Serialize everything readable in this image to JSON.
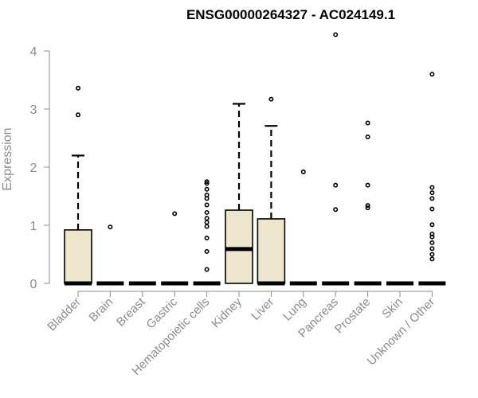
{
  "chart_data": {
    "type": "boxplot",
    "title": "ENSG00000264327 - AC024149.1",
    "xlabel": "",
    "ylabel": "Expression",
    "ylim": [
      0,
      4.3
    ],
    "yticks": [
      0,
      1,
      2,
      3,
      4
    ],
    "grid": false,
    "colors": {
      "box_fill": "#ede5cc",
      "box_stroke": "#000000",
      "axis": "#8c8c8c",
      "label": "#8c8c8c"
    },
    "categories": [
      "Bladder",
      "Brain",
      "Breast",
      "Gastric",
      "Hematopoietic cells",
      "Kidney",
      "Liver",
      "Lung",
      "Pancreas",
      "Prostate",
      "Skin",
      "Unknown / Other"
    ],
    "boxes": [
      {
        "category": "Bladder",
        "q1": 0,
        "median": 0,
        "q3": 0.92,
        "whisker_low": 0,
        "whisker_high": 2.2,
        "outliers": [
          2.9,
          3.36
        ]
      },
      {
        "category": "Brain",
        "q1": 0,
        "median": 0,
        "q3": 0,
        "whisker_low": 0,
        "whisker_high": 0,
        "outliers": [
          0.97
        ]
      },
      {
        "category": "Breast",
        "q1": 0,
        "median": 0,
        "q3": 0,
        "whisker_low": 0,
        "whisker_high": 0,
        "outliers": []
      },
      {
        "category": "Gastric",
        "q1": 0,
        "median": 0,
        "q3": 0,
        "whisker_low": 0,
        "whisker_high": 0,
        "outliers": [
          1.2
        ]
      },
      {
        "category": "Hematopoietic cells",
        "q1": 0,
        "median": 0,
        "q3": 0,
        "whisker_low": 0,
        "whisker_high": 0,
        "outliers": [
          0.24,
          0.55,
          0.78,
          0.98,
          1.05,
          1.12,
          1.22,
          1.35,
          1.46,
          1.52,
          1.62,
          1.72,
          1.75
        ]
      },
      {
        "category": "Kidney",
        "q1": 0,
        "median": 0.59,
        "q3": 1.26,
        "whisker_low": 0,
        "whisker_high": 3.09,
        "outliers": []
      },
      {
        "category": "Liver",
        "q1": 0,
        "median": 0,
        "q3": 1.11,
        "whisker_low": 0,
        "whisker_high": 2.71,
        "outliers": [
          3.17
        ]
      },
      {
        "category": "Lung",
        "q1": 0,
        "median": 0,
        "q3": 0,
        "whisker_low": 0,
        "whisker_high": 0,
        "outliers": [
          1.92
        ]
      },
      {
        "category": "Pancreas",
        "q1": 0,
        "median": 0,
        "q3": 0,
        "whisker_low": 0,
        "whisker_high": 0,
        "outliers": [
          1.27,
          1.69,
          4.28
        ]
      },
      {
        "category": "Prostate",
        "q1": 0,
        "median": 0,
        "q3": 0,
        "whisker_low": 0,
        "whisker_high": 0,
        "outliers": [
          1.3,
          1.34,
          1.69,
          2.52,
          2.76
        ]
      },
      {
        "category": "Skin",
        "q1": 0,
        "median": 0,
        "q3": 0,
        "whisker_low": 0,
        "whisker_high": 0,
        "outliers": []
      },
      {
        "category": "Unknown / Other",
        "q1": 0,
        "median": 0,
        "q3": 0,
        "whisker_low": 0,
        "whisker_high": 0,
        "outliers": [
          0.42,
          0.5,
          0.6,
          0.7,
          0.8,
          0.85,
          1.01,
          1.28,
          1.46,
          1.56,
          1.65,
          3.6
        ]
      }
    ]
  }
}
